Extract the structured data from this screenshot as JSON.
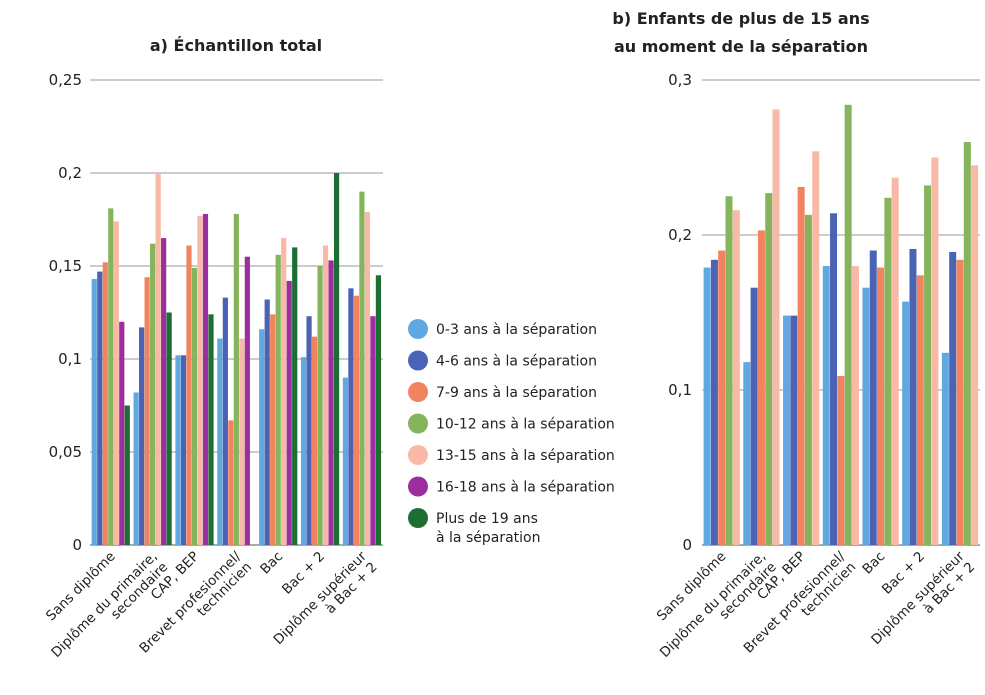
{
  "chart_data": [
    {
      "type": "bar",
      "title": "a) Échantillon total",
      "categories": [
        [
          "Sans diplôme"
        ],
        [
          "Diplôme du primaire,",
          "secondaire"
        ],
        [
          "CAP, BEP"
        ],
        [
          "Brevet profesionnel/",
          "technicien"
        ],
        [
          "Bac"
        ],
        [
          "Bac + 2"
        ],
        [
          "Diplôme supérieur",
          "à Bac + 2"
        ]
      ],
      "ylim": [
        0,
        0.25
      ],
      "yticks": [
        "0",
        "0,05",
        "0,1",
        "0,15",
        "0,2",
        "0,25"
      ],
      "grid": true,
      "series": [
        {
          "values": [
            0.143,
            0.082,
            0.102,
            0.111,
            0.116,
            0.101,
            0.09
          ]
        },
        {
          "values": [
            0.147,
            0.117,
            0.102,
            0.133,
            0.132,
            0.123,
            0.138
          ]
        },
        {
          "values": [
            0.152,
            0.144,
            0.161,
            0.067,
            0.124,
            0.112,
            0.134
          ]
        },
        {
          "values": [
            0.181,
            0.162,
            0.149,
            0.178,
            0.156,
            0.15,
            0.19
          ]
        },
        {
          "values": [
            0.174,
            0.2,
            0.177,
            0.111,
            0.165,
            0.161,
            0.179
          ]
        },
        {
          "values": [
            0.12,
            0.165,
            0.178,
            0.155,
            0.142,
            0.153,
            0.123
          ]
        },
        {
          "values": [
            0.075,
            0.125,
            0.124,
            0.0,
            0.16,
            0.2,
            0.145
          ]
        }
      ]
    },
    {
      "type": "bar",
      "title": [
        "b) Enfants de plus de 15 ans",
        "au moment de la séparation"
      ],
      "categories": [
        [
          "Sans diplôme"
        ],
        [
          "Diplôme du primaire,",
          "secondaire"
        ],
        [
          "CAP, BEP"
        ],
        [
          "Brevet profesionnel/",
          "technicien"
        ],
        [
          "Bac"
        ],
        [
          "Bac + 2"
        ],
        [
          "Diplôme supérieur",
          "à Bac + 2"
        ]
      ],
      "ylim": [
        0,
        0.3
      ],
      "yticks": [
        "0",
        "0,1",
        "0,2",
        "0,3"
      ],
      "grid": true,
      "series": [
        {
          "values": [
            0.179,
            0.118,
            0.148,
            0.18,
            0.166,
            0.157,
            0.124
          ]
        },
        {
          "values": [
            0.184,
            0.166,
            0.148,
            0.214,
            0.19,
            0.191,
            0.189
          ]
        },
        {
          "values": [
            0.19,
            0.203,
            0.231,
            0.109,
            0.179,
            0.174,
            0.184
          ]
        },
        {
          "values": [
            0.225,
            0.227,
            0.213,
            0.284,
            0.224,
            0.232,
            0.26
          ]
        },
        {
          "values": [
            0.216,
            0.281,
            0.254,
            0.18,
            0.237,
            0.25,
            0.245
          ]
        }
      ]
    }
  ],
  "legend": {
    "placement": "center",
    "items": [
      {
        "lines": [
          "0-3 ans à la séparation"
        ],
        "color": "#62a8e0"
      },
      {
        "lines": [
          "4-6 ans à la séparation"
        ],
        "color": "#4a63b5"
      },
      {
        "lines": [
          "7-9 ans à la séparation"
        ],
        "color": "#f1845e"
      },
      {
        "lines": [
          "10-12 ans à la séparation"
        ],
        "color": "#86b45c"
      },
      {
        "lines": [
          "13-15 ans à la séparation"
        ],
        "color": "#f8b9a6"
      },
      {
        "lines": [
          "16-18 ans à la séparation"
        ],
        "color": "#9b2fa0"
      },
      {
        "lines": [
          "Plus de 19 ans",
          "à la séparation"
        ],
        "color": "#1c6e33"
      }
    ]
  }
}
